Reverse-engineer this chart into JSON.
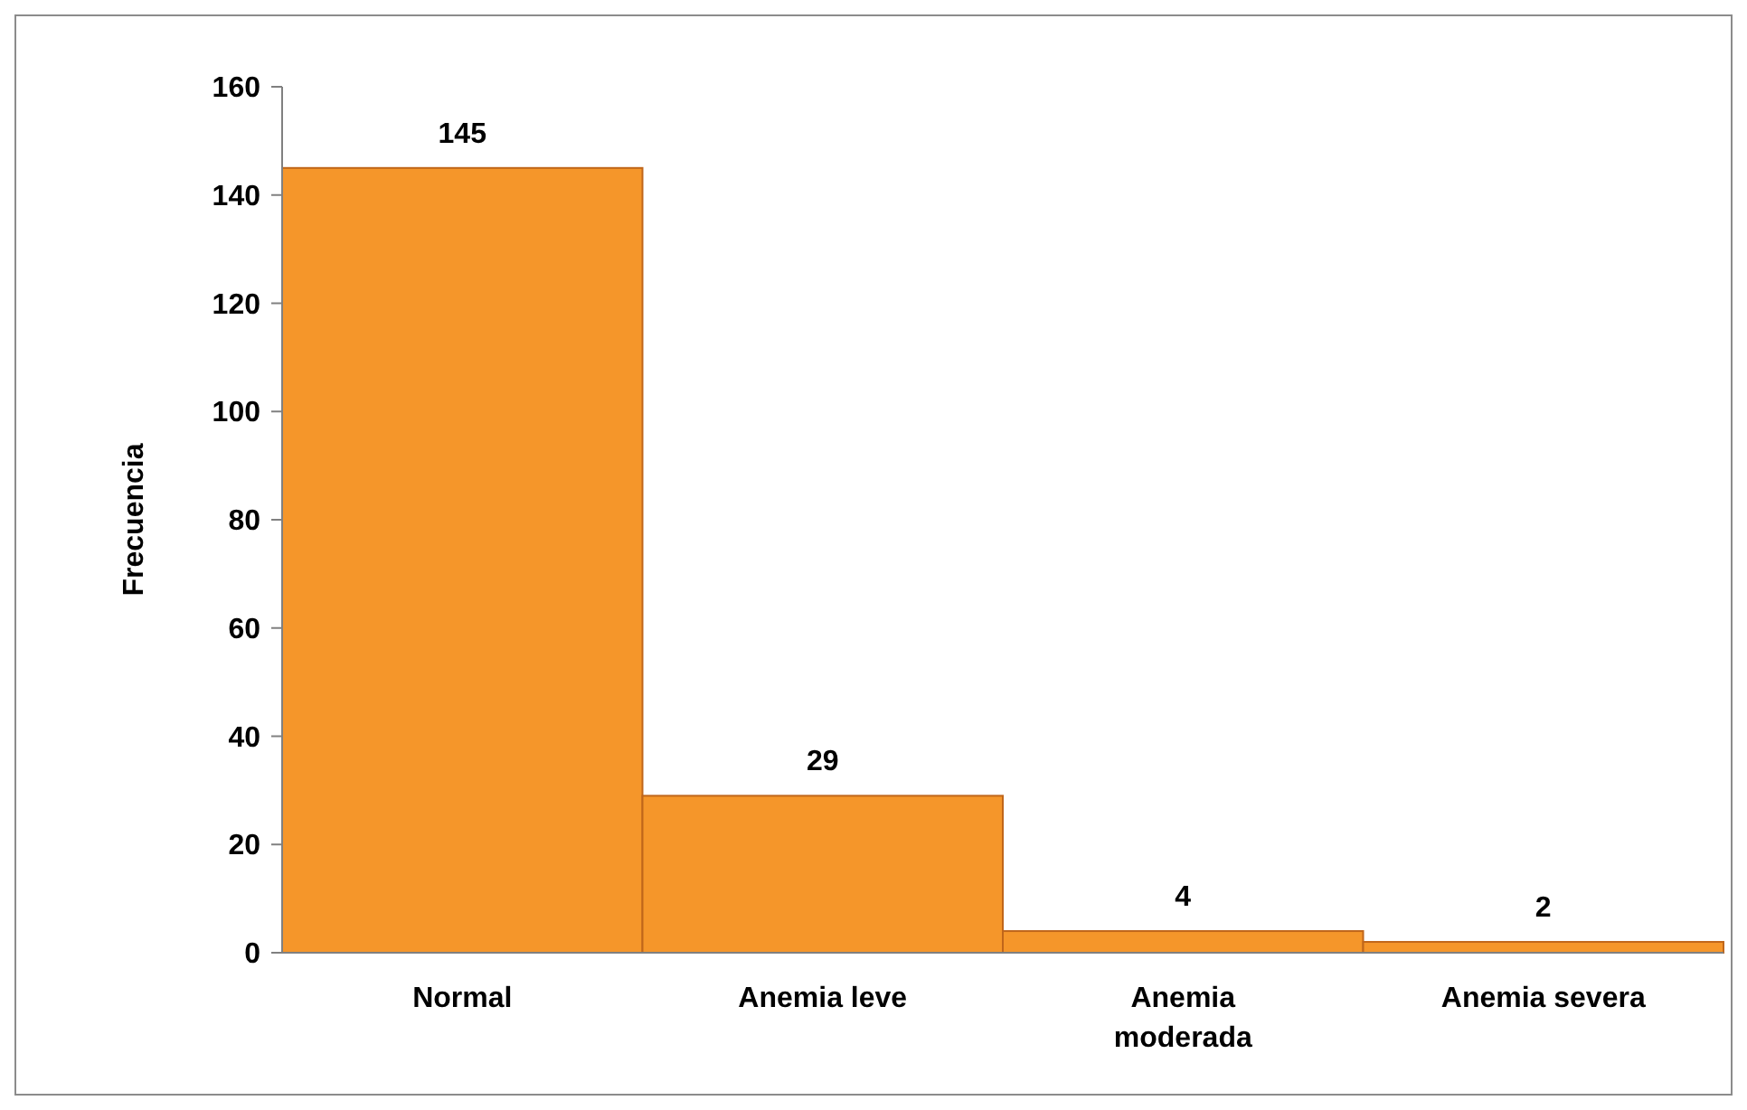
{
  "chart_data": {
    "type": "bar",
    "ylabel": "Frecuencia",
    "categories": [
      "Normal",
      "Anemia leve",
      "Anemia moderada",
      "Anemia severa"
    ],
    "values": [
      145,
      29,
      4,
      2
    ],
    "color": "#f5962a",
    "ylim": [
      0,
      160
    ],
    "yticks": [
      0,
      20,
      40,
      60,
      80,
      100,
      120,
      140,
      160
    ],
    "data_labels": true
  }
}
